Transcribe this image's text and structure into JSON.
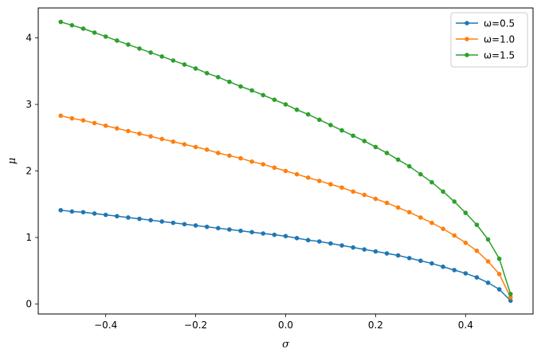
{
  "chart_data": {
    "type": "line",
    "xlabel": "σ",
    "ylabel": "μ",
    "xlim": [
      -0.55,
      0.55
    ],
    "ylim": [
      -0.15,
      4.45
    ],
    "xticks": [
      -0.4,
      -0.2,
      0.0,
      0.2,
      0.4
    ],
    "xtick_labels": [
      "−0.4",
      "−0.2",
      "0.0",
      "0.2",
      "0.4"
    ],
    "yticks": [
      0,
      1,
      2,
      3,
      4
    ],
    "ytick_labels": [
      "0",
      "1",
      "2",
      "3",
      "4"
    ],
    "grid": false,
    "legend_position": "top-right",
    "x": [
      -0.5,
      -0.475,
      -0.45,
      -0.425,
      -0.4,
      -0.375,
      -0.35,
      -0.325,
      -0.3,
      -0.275,
      -0.25,
      -0.225,
      -0.2,
      -0.175,
      -0.15,
      -0.125,
      -0.1,
      -0.075,
      -0.05,
      -0.025,
      0.0,
      0.025,
      0.05,
      0.075,
      0.1,
      0.125,
      0.15,
      0.175,
      0.2,
      0.225,
      0.25,
      0.275,
      0.3,
      0.325,
      0.35,
      0.375,
      0.4,
      0.425,
      0.45,
      0.475,
      0.5
    ],
    "series": [
      {
        "name": "ω=0.5",
        "color": "#1f77b4",
        "values": [
          1.41,
          1.39,
          1.38,
          1.36,
          1.34,
          1.32,
          1.3,
          1.28,
          1.26,
          1.24,
          1.22,
          1.2,
          1.18,
          1.16,
          1.14,
          1.12,
          1.1,
          1.08,
          1.06,
          1.04,
          1.02,
          0.99,
          0.96,
          0.94,
          0.91,
          0.88,
          0.85,
          0.82,
          0.79,
          0.76,
          0.73,
          0.69,
          0.65,
          0.61,
          0.56,
          0.51,
          0.46,
          0.4,
          0.32,
          0.22,
          0.05
        ]
      },
      {
        "name": "ω=1.0",
        "color": "#ff7f0e",
        "values": [
          2.83,
          2.79,
          2.76,
          2.72,
          2.68,
          2.64,
          2.6,
          2.56,
          2.52,
          2.48,
          2.44,
          2.4,
          2.36,
          2.32,
          2.27,
          2.23,
          2.19,
          2.14,
          2.1,
          2.05,
          2.0,
          1.95,
          1.9,
          1.85,
          1.8,
          1.75,
          1.69,
          1.64,
          1.58,
          1.52,
          1.45,
          1.38,
          1.3,
          1.22,
          1.13,
          1.03,
          0.92,
          0.8,
          0.64,
          0.45,
          0.1
        ]
      },
      {
        "name": "ω=1.5",
        "color": "#2ca02c",
        "values": [
          4.24,
          4.19,
          4.14,
          4.08,
          4.02,
          3.96,
          3.9,
          3.84,
          3.78,
          3.72,
          3.66,
          3.6,
          3.54,
          3.47,
          3.41,
          3.34,
          3.27,
          3.21,
          3.14,
          3.07,
          3.0,
          2.92,
          2.85,
          2.77,
          2.69,
          2.61,
          2.53,
          2.45,
          2.36,
          2.27,
          2.17,
          2.07,
          1.95,
          1.83,
          1.69,
          1.54,
          1.37,
          1.19,
          0.97,
          0.68,
          0.15
        ]
      }
    ]
  }
}
